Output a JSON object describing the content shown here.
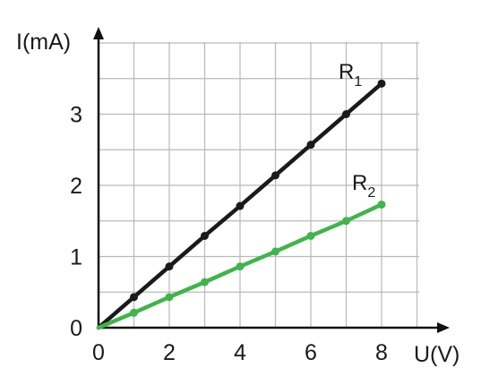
{
  "chart_data": {
    "type": "line",
    "xlabel": "U(V)",
    "ylabel": "I(mA)",
    "xlim": [
      0,
      9.5
    ],
    "ylim": [
      0,
      4
    ],
    "grid": true,
    "x_ticks": [
      0,
      2,
      4,
      6,
      8
    ],
    "y_ticks": [
      0,
      1,
      2,
      3
    ],
    "x": [
      0,
      1,
      2,
      3,
      4,
      5,
      6,
      7,
      8
    ],
    "series": [
      {
        "name": "R",
        "subscript": "1",
        "color": "#1a1a1a",
        "values": [
          0,
          0.43,
          0.86,
          1.29,
          1.71,
          2.14,
          2.57,
          3.0,
          3.43
        ]
      },
      {
        "name": "R",
        "subscript": "2",
        "color": "#3fb54a",
        "values": [
          0,
          0.21,
          0.43,
          0.64,
          0.86,
          1.07,
          1.29,
          1.5,
          1.73
        ]
      }
    ]
  }
}
